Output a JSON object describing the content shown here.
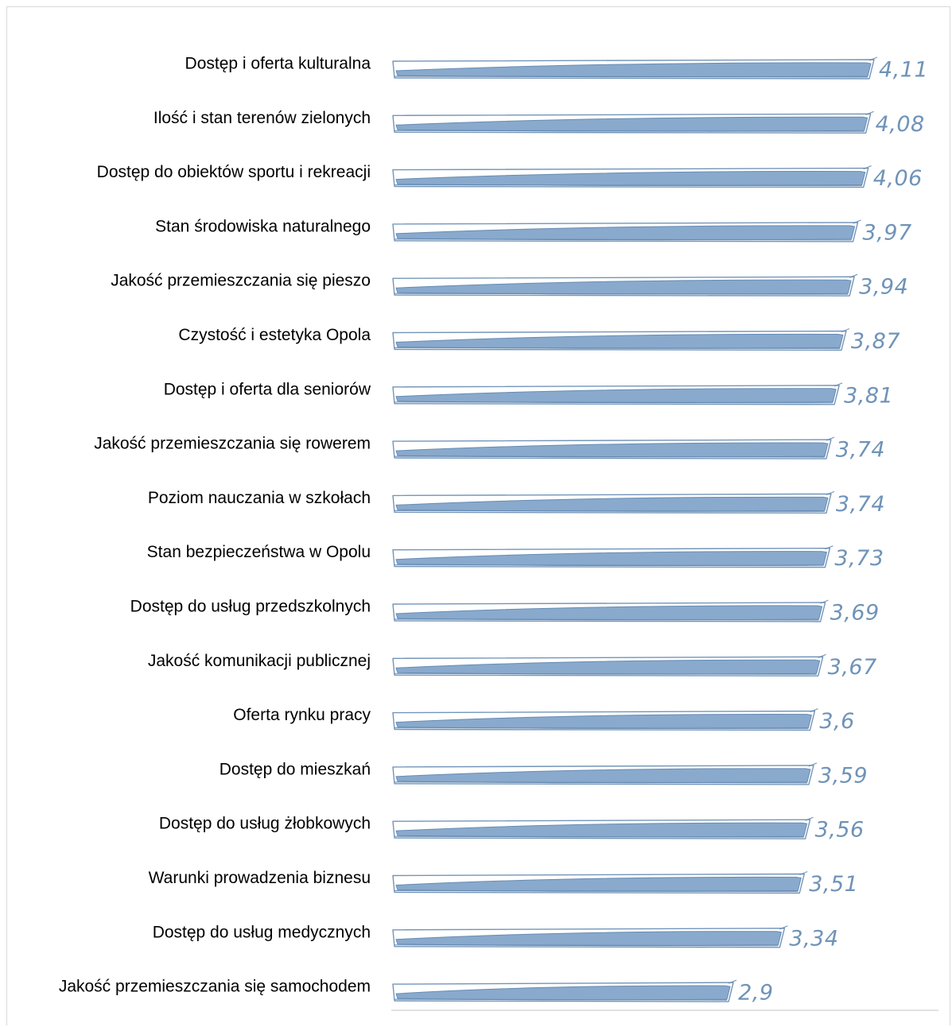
{
  "chart_data": {
    "type": "bar",
    "orientation": "horizontal",
    "style": "sketch",
    "bar_color": "#7fa3c9",
    "bar_outline_color": "#5b82ad",
    "value_label_color": "#6f93b8",
    "categories": [
      "Dostęp i oferta kulturalna",
      "Ilość i stan terenów zielonych",
      "Dostęp do obiektów sportu i rekreacji",
      "Stan środowiska naturalnego",
      "Jakość przemieszczania się pieszo",
      "Czystość i estetyka Opola",
      "Dostęp i oferta dla seniorów",
      "Jakość przemieszczania się rowerem",
      "Poziom nauczania w szkołach",
      "Stan bezpieczeństwa w Opolu",
      "Dostęp do usług przedszkolnych",
      "Jakość komunikacji publicznej",
      "Oferta rynku pracy",
      "Dostęp do mieszkań",
      "Dostęp do usług żłobkowych",
      "Warunki prowadzenia biznesu",
      "Dostęp do usług medycznych",
      "Jakość przemieszczania się samochodem"
    ],
    "values": [
      4.11,
      4.08,
      4.06,
      3.97,
      3.94,
      3.87,
      3.81,
      3.74,
      3.74,
      3.73,
      3.69,
      3.67,
      3.6,
      3.59,
      3.56,
      3.51,
      3.34,
      2.9
    ],
    "value_labels": [
      "4,11",
      "4,08",
      "4,06",
      "3,97",
      "3,94",
      "3,87",
      "3,81",
      "3,74",
      "3,74",
      "3,73",
      "3,69",
      "3,67",
      "3,6",
      "3,59",
      "3,56",
      "3,51",
      "3,34",
      "2,9"
    ],
    "xlim": [
      0,
      4.11
    ],
    "grid": false,
    "legend": "none"
  }
}
